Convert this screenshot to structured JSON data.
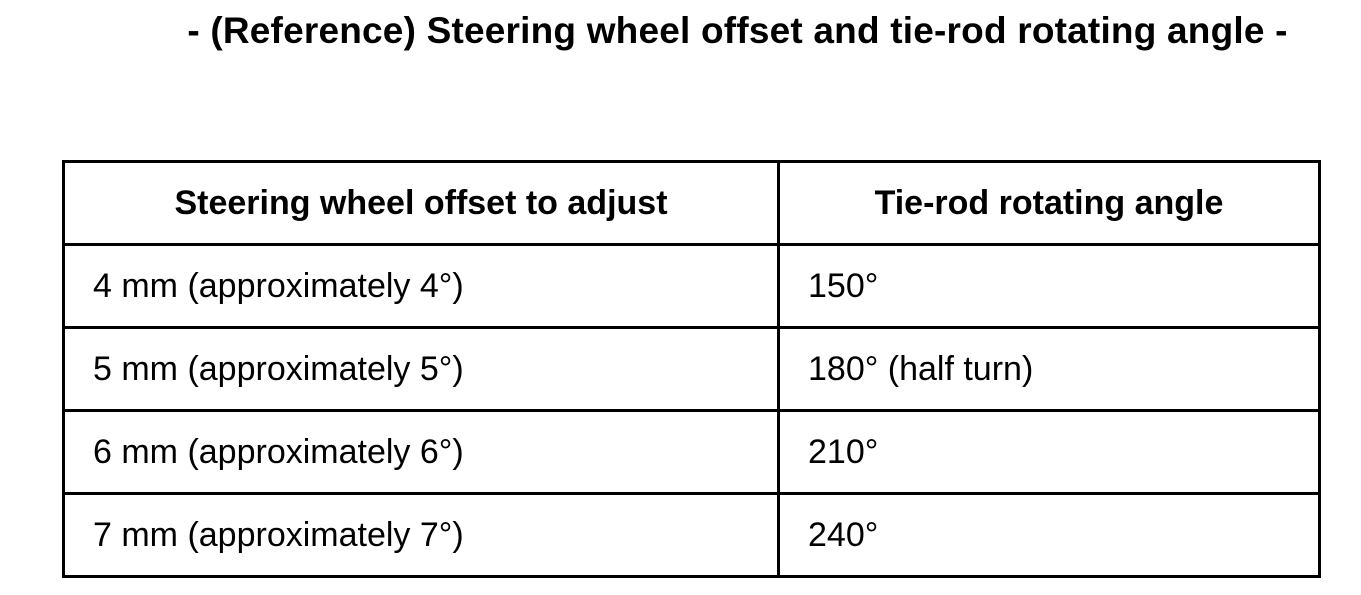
{
  "page": {
    "title": "- (Reference) Steering wheel offset and tie-rod rotating angle -"
  },
  "table": {
    "columns": [
      "Steering wheel offset to adjust",
      "Tie-rod rotating angle"
    ],
    "rows": [
      [
        "4 mm (approximately 4°)",
        "150°"
      ],
      [
        "5 mm (approximately 5°)",
        "180° (half turn)"
      ],
      [
        "6 mm (approximately 6°)",
        "210°"
      ],
      [
        "7 mm (approximately 7°)",
        "240°"
      ]
    ]
  },
  "colors": {
    "text": "#000000",
    "background": "#ffffff",
    "border": "#000000"
  }
}
